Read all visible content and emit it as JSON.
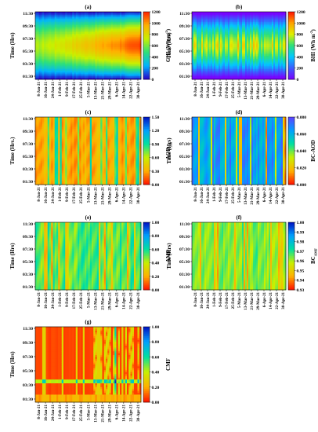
{
  "chart_data": [
    {
      "panel": "(a)",
      "type": "heatmap",
      "ylabel": "Time (Hrs)",
      "colorbar_label_main": "GHI (Wh m",
      "colorbar_label_sup": "-2",
      "colorbar_label_end": ")",
      "y_ticks": [
        "11:30",
        "09:30",
        "07:30",
        "05:30",
        "03:30",
        "01:30"
      ],
      "x_ticks": [
        "8-Jan-21",
        "16-Jan-21",
        "24-Jan-21",
        "1-Feb-21",
        "9-Feb-21",
        "17-Feb-21",
        "25-Feb-21",
        "5-Mar-21",
        "13-Mar-21",
        "21-Mar-21",
        "29-Mar-21",
        "6-Apr-21",
        "14-Apr-21",
        "22-Apr-21",
        "30-Apr-21"
      ],
      "colorbar_ticks": [
        "1200",
        "1000",
        "800",
        "600",
        "400",
        "200",
        "0"
      ],
      "zlim": [
        0,
        1200
      ],
      "colors": [
        "#2a00c8",
        "#00b4ff",
        "#2de07a",
        "#c8f000",
        "#ffb000",
        "#ff2000"
      ]
    },
    {
      "panel": "(b)",
      "type": "heatmap",
      "ylabel": "Time (Hrs)",
      "colorbar_label_main": "BHI (Wh m",
      "colorbar_label_sup": "-2",
      "colorbar_label_end": ")",
      "y_ticks": [
        "11:30",
        "09:30",
        "07:30",
        "05:30",
        "03:30",
        "01:30"
      ],
      "x_ticks": [
        "8-Jan-21",
        "16-Jan-21",
        "24-Jan-21",
        "1-Feb-21",
        "9-Feb-21",
        "17-Feb-21",
        "25-Feb-21",
        "5-Mar-21",
        "13-Mar-21",
        "21-Mar-21",
        "29-Mar-21",
        "6-Apr-21",
        "14-Apr-21",
        "22-Apr-21",
        "30-Apr-21"
      ],
      "colorbar_ticks": [
        "1200",
        "1000",
        "800",
        "600",
        "400",
        "200",
        "0"
      ],
      "zlim": [
        0,
        1200
      ],
      "colors": [
        "#7a00ff",
        "#3c5cff",
        "#00c8ff",
        "#2de07a",
        "#e0f000",
        "#ffa000",
        "#ff1000"
      ]
    },
    {
      "panel": "(c)",
      "type": "heatmap",
      "ylabel": "Time (Hrs.)",
      "colorbar_label_main": "AOD",
      "colorbar_label_sub": "550",
      "y_ticks": [
        "11:30",
        "09:30",
        "07:30",
        "05:30",
        "03:30",
        "01:30"
      ],
      "x_ticks": [
        "8-Jan-21",
        "16-Jan-21",
        "24-Jan-21",
        "1-Feb-21",
        "9-Feb-21",
        "17-Feb-21",
        "25-Feb-21",
        "5-Mar-21",
        "13-Mar-21",
        "21-Mar-21",
        "29-Mar-21",
        "6-Apr-21",
        "14-Apr-21",
        "22-Apr-21",
        "30-Apr-21"
      ],
      "colorbar_ticks": [
        "1.50",
        "1.20",
        "0.90",
        "0.60",
        "0.30",
        "0.00"
      ],
      "zlim": [
        0,
        1.5
      ],
      "colors": [
        "#ff1000",
        "#ffb000",
        "#c8f000",
        "#00e0a0",
        "#00a0ff",
        "#0010c0"
      ]
    },
    {
      "panel": "(d)",
      "type": "heatmap",
      "ylabel": "Time (Hrs)",
      "colorbar_label_main": "BC-AOD",
      "y_ticks": [
        "11:30",
        "09:30",
        "07:30",
        "05:30",
        "03:30",
        "01:30"
      ],
      "x_ticks": [
        "8-Jan-21",
        "16-Jan-21",
        "24-Jan-21",
        "1-Feb-21",
        "9-Feb-21",
        "17-Feb-21",
        "25-Feb-21",
        "5-Mar-21",
        "13-Mar-21",
        "21-Mar-21",
        "29-Mar-21",
        "6-Apr-21",
        "14-Apr-21",
        "22-Apr-21",
        "30-Apr-21"
      ],
      "colorbar_ticks": [
        "0.080",
        "0.060",
        "0.040",
        "0.020",
        "0.000"
      ],
      "zlim": [
        0,
        0.08
      ],
      "colors": [
        "#ff1000",
        "#ffb000",
        "#c8f000",
        "#00e0a0",
        "#00a0ff",
        "#6040ff"
      ]
    },
    {
      "panel": "(e)",
      "type": "heatmap",
      "ylabel": "Time (Hrs)",
      "colorbar_label_main": "AMF",
      "y_ticks": [
        "11:30",
        "09:30",
        "07:30",
        "05:30",
        "03:30",
        "01:30"
      ],
      "x_ticks": [
        "8-Jan-21",
        "16-Jan-21",
        "24-Jan-21",
        "1-Feb-21",
        "9-Feb-21",
        "17-Feb-21",
        "25-Feb-21",
        "5-Mar-21",
        "13-Mar-21",
        "21-Mar-21",
        "29-Mar-21",
        "6-Apr-21",
        "14-Apr-21",
        "22-Apr-21",
        "30-Apr-21"
      ],
      "colorbar_ticks": [
        "1.00",
        "0.80",
        "0.60",
        "0.40",
        "0.20",
        "0.00"
      ],
      "zlim": [
        0,
        1
      ],
      "colors": [
        "#ff1000",
        "#ffb000",
        "#c8f000",
        "#00e0a0",
        "#00a0ff",
        "#0010c0"
      ]
    },
    {
      "panel": "(f)",
      "type": "heatmap",
      "ylabel": "Time (Hrs)",
      "colorbar_label_main": "BC",
      "colorbar_label_sub": "AMF",
      "y_ticks": [
        "11:30",
        "09:30",
        "07:30",
        "05:30",
        "03:30",
        "01:30"
      ],
      "x_ticks": [
        "8-Jan-21",
        "16-Jan-21",
        "24-Jan-21",
        "1-Feb-21",
        "9-Feb-21",
        "17-Feb-21",
        "25-Feb-21",
        "5-Mar-21",
        "13-Mar-21",
        "21-Mar-21",
        "29-Mar-21",
        "6-Apr-21",
        "14-Apr-21",
        "22-Apr-21",
        "30-Apr-21"
      ],
      "colorbar_ticks": [
        "1.00",
        "0.99",
        "0.98",
        "0.97",
        "0.96",
        "0.95",
        "0.94",
        "0.93"
      ],
      "zlim": [
        0.93,
        1
      ],
      "colors": [
        "#ff1000",
        "#ffb000",
        "#c8f000",
        "#00e0a0",
        "#00a0ff",
        "#0010c0"
      ]
    },
    {
      "panel": "(g)",
      "type": "heatmap",
      "ylabel": "Time (Hrs)",
      "colorbar_label_main": "CMF",
      "y_ticks": [
        "11:30",
        "09:30",
        "07:30",
        "05:30",
        "03:30",
        "01:30"
      ],
      "x_ticks": [
        "8-Jan-21",
        "16-Jan-21",
        "24-Jan-21",
        "1-Feb-21",
        "9-Feb-21",
        "17-Feb-21",
        "25-Feb-21",
        "5-Mar-21",
        "13-Mar-21",
        "21-Mar-21",
        "29-Mar-21",
        "6-Apr-21",
        "14-Apr-21",
        "22-Apr-21",
        "30-Apr-21"
      ],
      "colorbar_ticks": [
        "1.00",
        "0.80",
        "0.60",
        "0.40",
        "0.20",
        "0.00"
      ],
      "zlim": [
        0,
        1
      ],
      "colors": [
        "#ff1000",
        "#ffb000",
        "#c8f000",
        "#00e0a0",
        "#00a0ff",
        "#0010c0"
      ]
    }
  ]
}
